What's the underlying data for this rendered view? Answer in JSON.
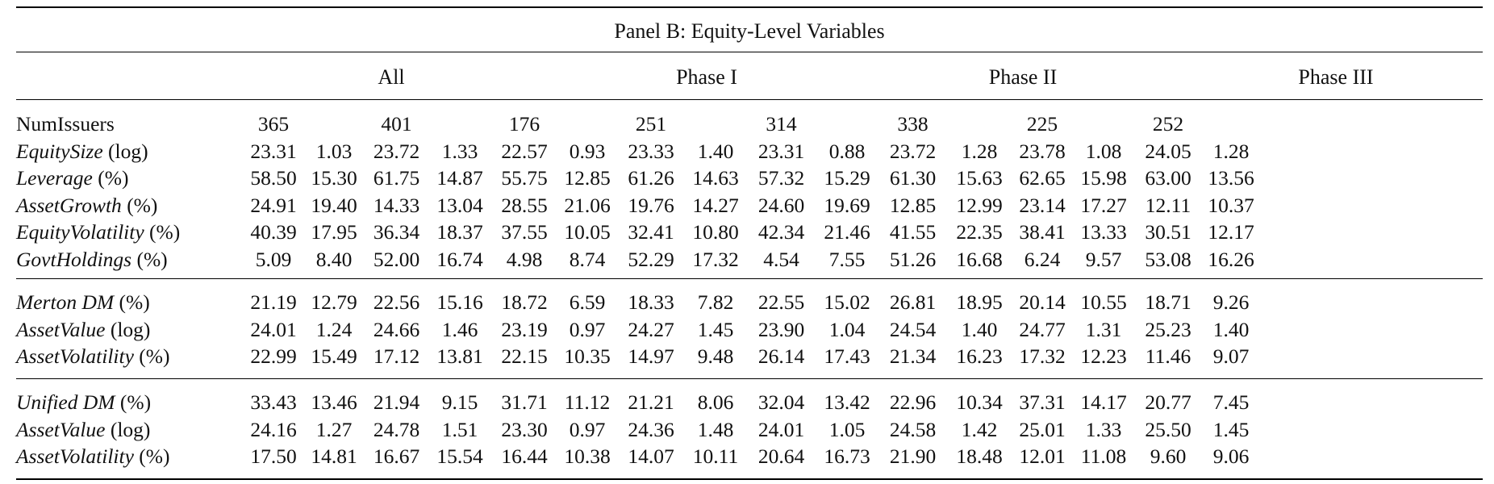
{
  "panel_title": "Panel B: Equity-Level Variables",
  "groups": [
    "All",
    "Phase I",
    "Phase II",
    "Phase III"
  ],
  "sections": [
    {
      "rows": [
        {
          "name": "NumIssuers",
          "unit": "",
          "italic": false,
          "indent": false,
          "cells": [
            "365",
            "",
            "401",
            "",
            "176",
            "",
            "251",
            "",
            "314",
            "",
            "338",
            "",
            "225",
            "",
            "252",
            ""
          ]
        },
        {
          "name": "EquitySize",
          "unit": " (log)",
          "italic": true,
          "indent": false,
          "cells": [
            "23.31",
            "1.03",
            "23.72",
            "1.33",
            "22.57",
            "0.93",
            "23.33",
            "1.40",
            "23.31",
            "0.88",
            "23.72",
            "1.28",
            "23.78",
            "1.08",
            "24.05",
            "1.28"
          ]
        },
        {
          "name": "Leverage",
          "unit": " (%)",
          "italic": true,
          "indent": false,
          "cells": [
            "58.50",
            "15.30",
            "61.75",
            "14.87",
            "55.75",
            "12.85",
            "61.26",
            "14.63",
            "57.32",
            "15.29",
            "61.30",
            "15.63",
            "62.65",
            "15.98",
            "63.00",
            "13.56"
          ]
        },
        {
          "name": "AssetGrowth",
          "unit": " (%)",
          "italic": true,
          "indent": false,
          "cells": [
            "24.91",
            "19.40",
            "14.33",
            "13.04",
            "28.55",
            "21.06",
            "19.76",
            "14.27",
            "24.60",
            "19.69",
            "12.85",
            "12.99",
            "23.14",
            "17.27",
            "12.11",
            "10.37"
          ]
        },
        {
          "name": "EquityVolatility",
          "unit": " (%)",
          "italic": true,
          "indent": false,
          "cells": [
            "40.39",
            "17.95",
            "36.34",
            "18.37",
            "37.55",
            "10.05",
            "32.41",
            "10.80",
            "42.34",
            "21.46",
            "41.55",
            "22.35",
            "38.41",
            "13.33",
            "30.51",
            "12.17"
          ]
        },
        {
          "name": "GovtHoldings",
          "unit": " (%)",
          "italic": true,
          "indent": false,
          "cells": [
            "5.09",
            "8.40",
            "52.00",
            "16.74",
            "4.98",
            "8.74",
            "52.29",
            "17.32",
            "4.54",
            "7.55",
            "51.26",
            "16.68",
            "6.24",
            "9.57",
            "53.08",
            "16.26"
          ]
        }
      ]
    },
    {
      "rows": [
        {
          "name": "Merton DM",
          "unit": " (%)",
          "italic": true,
          "indent": false,
          "cells": [
            "21.19",
            "12.79",
            "22.56",
            "15.16",
            "18.72",
            "6.59",
            "18.33",
            "7.82",
            "22.55",
            "15.02",
            "26.81",
            "18.95",
            "20.14",
            "10.55",
            "18.71",
            "9.26"
          ]
        },
        {
          "name": "AssetValue",
          "unit": " (log)",
          "italic": true,
          "indent": true,
          "cells": [
            "24.01",
            "1.24",
            "24.66",
            "1.46",
            "23.19",
            "0.97",
            "24.27",
            "1.45",
            "23.90",
            "1.04",
            "24.54",
            "1.40",
            "24.77",
            "1.31",
            "25.23",
            "1.40"
          ]
        },
        {
          "name": "AssetVolatility",
          "unit": " (%)",
          "italic": true,
          "indent": true,
          "cells": [
            "22.99",
            "15.49",
            "17.12",
            "13.81",
            "22.15",
            "10.35",
            "14.97",
            "9.48",
            "26.14",
            "17.43",
            "21.34",
            "16.23",
            "17.32",
            "12.23",
            "11.46",
            "9.07"
          ]
        }
      ]
    },
    {
      "rows": [
        {
          "name": "Unified DM",
          "unit": " (%)",
          "italic": true,
          "indent": false,
          "cells": [
            "33.43",
            "13.46",
            "21.94",
            "9.15",
            "31.71",
            "11.12",
            "21.21",
            "8.06",
            "32.04",
            "13.42",
            "22.96",
            "10.34",
            "37.31",
            "14.17",
            "20.77",
            "7.45"
          ]
        },
        {
          "name": "AssetValue",
          "unit": " (log)",
          "italic": true,
          "indent": true,
          "cells": [
            "24.16",
            "1.27",
            "24.78",
            "1.51",
            "23.30",
            "0.97",
            "24.36",
            "1.48",
            "24.01",
            "1.05",
            "24.58",
            "1.42",
            "25.01",
            "1.33",
            "25.50",
            "1.45"
          ]
        },
        {
          "name": "AssetVolatility",
          "unit": " (%)",
          "italic": true,
          "indent": true,
          "cells": [
            "17.50",
            "14.81",
            "16.67",
            "15.54",
            "16.44",
            "10.38",
            "14.07",
            "10.11",
            "20.64",
            "16.73",
            "21.90",
            "18.48",
            "12.01",
            "11.08",
            "9.60",
            "9.06"
          ]
        }
      ]
    }
  ]
}
